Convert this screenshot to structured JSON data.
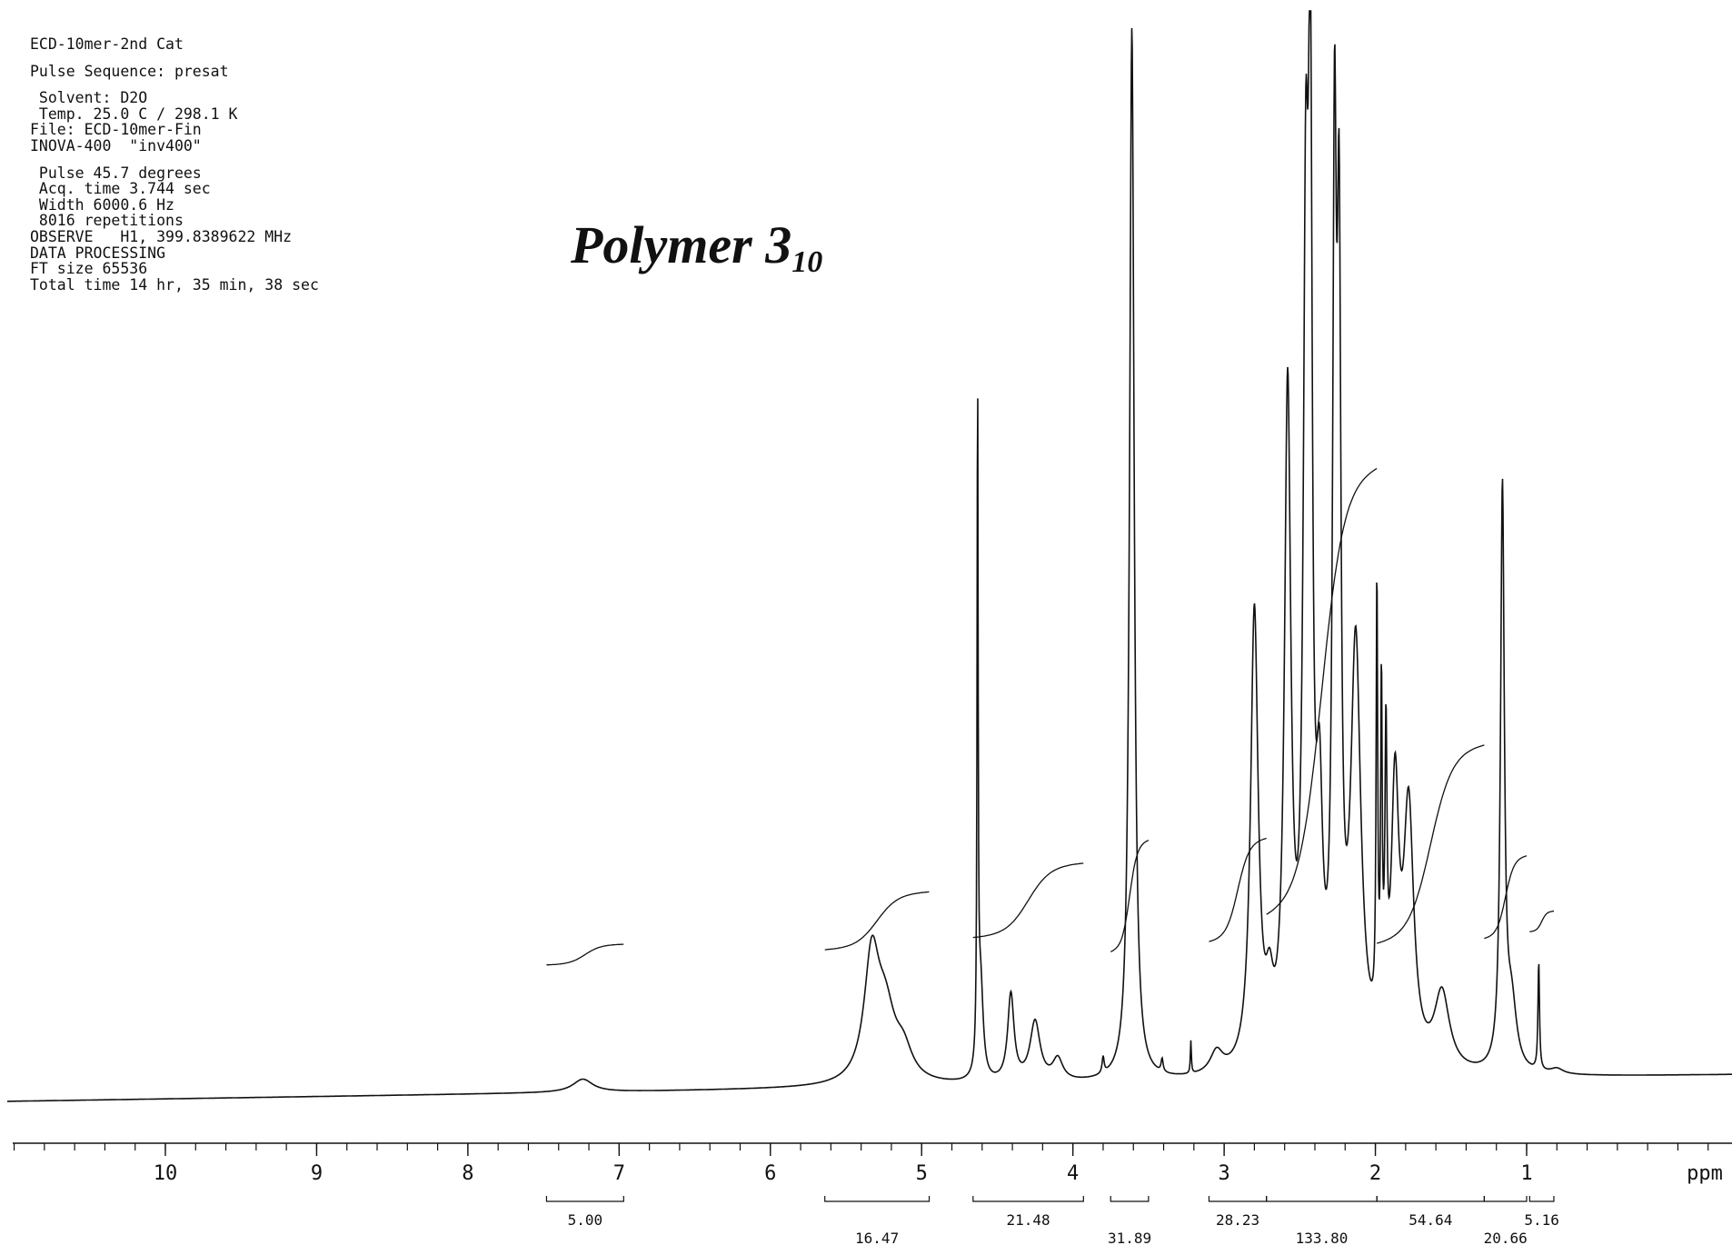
{
  "header": {
    "sample": "ECD-10mer-2nd Cat",
    "pulse_sequence": "Pulse Sequence: presat",
    "solvent": " Solvent: D2O",
    "temp": " Temp. 25.0 C / 298.1 K",
    "file": "File: ECD-10mer-Fin",
    "instrument": "INOVA-400  \"inv400\"",
    "pulse": " Pulse 45.7 degrees",
    "acq_time": " Acq. time 3.744 sec",
    "width": " Width 6000.6 Hz",
    "repetitions": " 8016 repetitions",
    "observe": "OBSERVE   H1, 399.8389622 MHz",
    "processing": "DATA PROCESSING",
    "ft_size": "FT size 65536",
    "total_time": "Total time 14 hr, 35 min, 38 sec"
  },
  "title": {
    "main": "Polymer 3",
    "subscript": "10"
  },
  "colors": {
    "ink": "#111111",
    "background": "#ffffff"
  },
  "chart_data": {
    "type": "line",
    "title": "Polymer 3₁₀",
    "xlabel": "ppm",
    "xlim": [
      11.0,
      -0.3
    ],
    "x_reversed": true,
    "xticks": [
      10,
      9,
      8,
      7,
      6,
      5,
      4,
      3,
      2,
      1
    ],
    "xtick_labels": [
      "10",
      "9",
      "8",
      "7",
      "6",
      "5",
      "4",
      "3",
      "2",
      "1"
    ],
    "ylim": [
      0,
      1.0
    ],
    "grid": false,
    "peaks": [
      {
        "ppm": 7.24,
        "height": 0.012,
        "width": 0.08
      },
      {
        "ppm": 5.33,
        "height": 0.11,
        "width": 0.06
      },
      {
        "ppm": 5.24,
        "height": 0.06,
        "width": 0.08
      },
      {
        "ppm": 5.12,
        "height": 0.025,
        "width": 0.07
      },
      {
        "ppm": 4.63,
        "height": 0.63,
        "width": 0.004
      },
      {
        "ppm": 4.61,
        "height": 0.09,
        "width": 0.02
      },
      {
        "ppm": 4.41,
        "height": 0.08,
        "width": 0.025
      },
      {
        "ppm": 4.25,
        "height": 0.055,
        "width": 0.04
      },
      {
        "ppm": 4.1,
        "height": 0.02,
        "width": 0.04
      },
      {
        "ppm": 3.8,
        "height": 0.015,
        "width": 0.008
      },
      {
        "ppm": 3.61,
        "height": 0.97,
        "width": 0.018
      },
      {
        "ppm": 3.41,
        "height": 0.012,
        "width": 0.008
      },
      {
        "ppm": 3.22,
        "height": 0.03,
        "width": 0.004
      },
      {
        "ppm": 3.05,
        "height": 0.02,
        "width": 0.05
      },
      {
        "ppm": 2.8,
        "height": 0.42,
        "width": 0.03
      },
      {
        "ppm": 2.7,
        "height": 0.05,
        "width": 0.03
      },
      {
        "ppm": 2.58,
        "height": 0.61,
        "width": 0.025
      },
      {
        "ppm": 2.46,
        "height": 0.7,
        "width": 0.02
      },
      {
        "ppm": 2.43,
        "height": 0.78,
        "width": 0.015
      },
      {
        "ppm": 2.37,
        "height": 0.2,
        "width": 0.025
      },
      {
        "ppm": 2.27,
        "height": 0.76,
        "width": 0.015
      },
      {
        "ppm": 2.24,
        "height": 0.65,
        "width": 0.015
      },
      {
        "ppm": 2.13,
        "height": 0.38,
        "width": 0.04
      },
      {
        "ppm": 1.99,
        "height": 0.4,
        "width": 0.006
      },
      {
        "ppm": 1.96,
        "height": 0.3,
        "width": 0.006
      },
      {
        "ppm": 1.93,
        "height": 0.25,
        "width": 0.008
      },
      {
        "ppm": 1.87,
        "height": 0.24,
        "width": 0.03
      },
      {
        "ppm": 1.78,
        "height": 0.23,
        "width": 0.04
      },
      {
        "ppm": 1.56,
        "height": 0.07,
        "width": 0.06
      },
      {
        "ppm": 1.16,
        "height": 0.53,
        "width": 0.015
      },
      {
        "ppm": 1.1,
        "height": 0.06,
        "width": 0.04
      },
      {
        "ppm": 0.92,
        "height": 0.1,
        "width": 0.006
      },
      {
        "ppm": 0.8,
        "height": 0.005,
        "width": 0.05
      }
    ],
    "integrals": [
      {
        "value": "5.00",
        "from": 7.48,
        "to": 6.97,
        "row": 1,
        "rise": 0.025
      },
      {
        "value": "16.47",
        "from": 5.64,
        "to": 4.95,
        "row": 2,
        "rise": 0.07
      },
      {
        "value": "21.48",
        "from": 4.66,
        "to": 3.93,
        "row": 1,
        "rise": 0.09
      },
      {
        "value": "31.89",
        "from": 3.75,
        "to": 3.5,
        "row": 2,
        "rise": 0.135
      },
      {
        "value": "28.23",
        "from": 3.1,
        "to": 2.72,
        "row": 1,
        "rise": 0.125
      },
      {
        "value": "133.80",
        "from": 2.72,
        "to": 1.99,
        "row": 2,
        "rise": 0.54
      },
      {
        "value": "54.64",
        "from": 1.99,
        "to": 1.28,
        "row": 1,
        "rise": 0.24
      },
      {
        "value": "20.66",
        "from": 1.28,
        "to": 1.0,
        "row": 2,
        "rise": 0.1
      },
      {
        "value": "5.16",
        "from": 0.98,
        "to": 0.82,
        "row": 1,
        "rise": 0.025
      }
    ]
  }
}
